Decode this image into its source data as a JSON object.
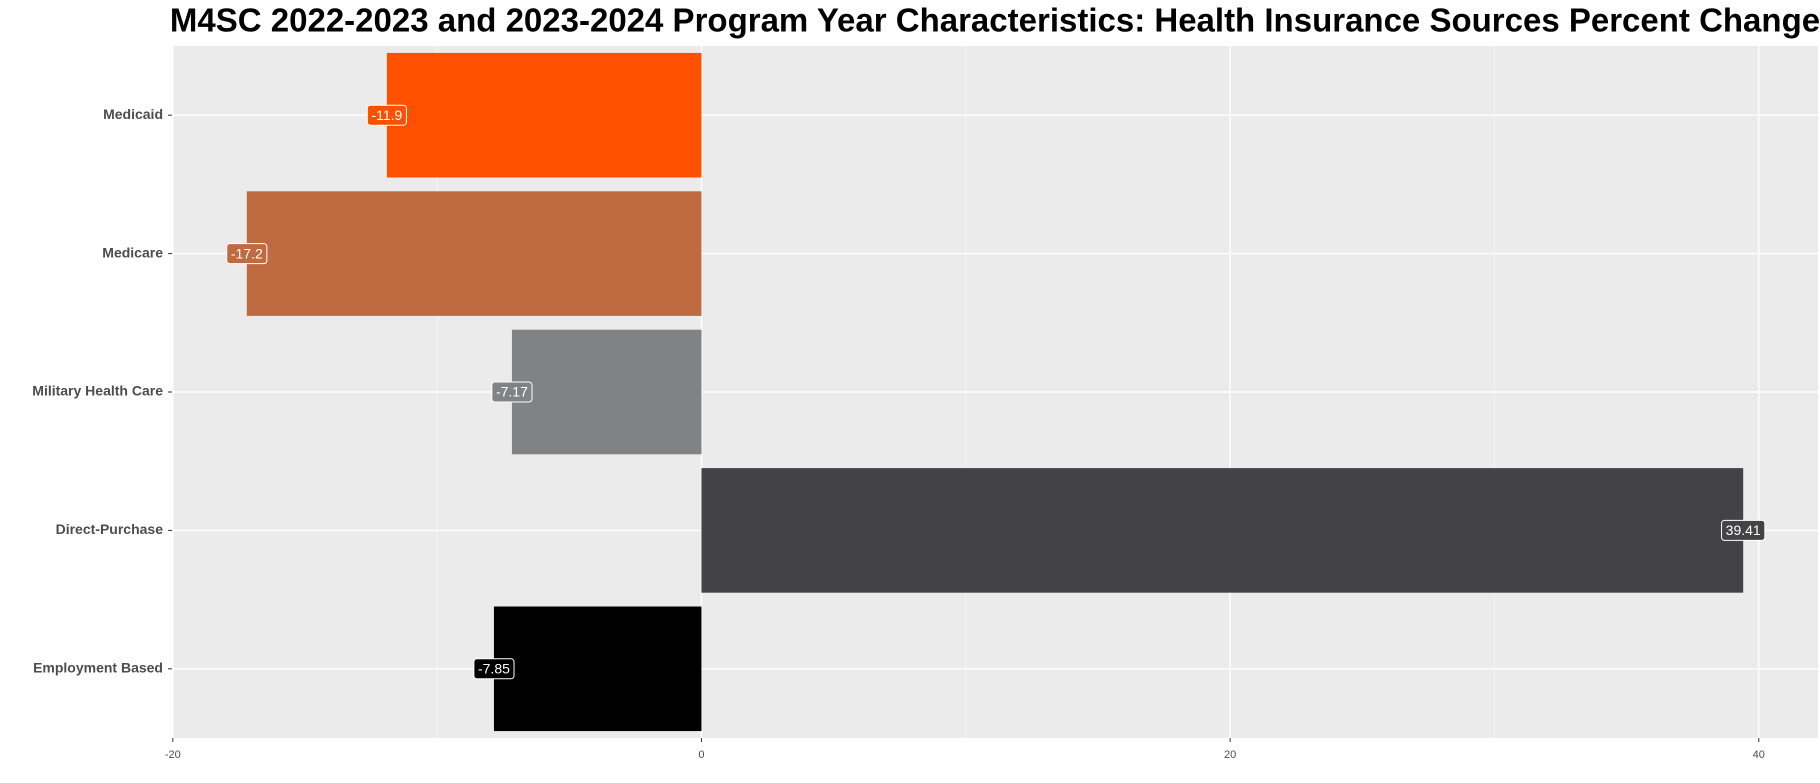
{
  "chart_data": {
    "type": "barh",
    "title": "M4SC 2022-2023 and 2023-2024 Program Year Characteristics: Health Insurance Sources Percent Change",
    "categories": [
      "Medicaid",
      "Medicare",
      "Military Health Care",
      "Direct-Purchase",
      "Employment Based"
    ],
    "values": [
      -11.9,
      -17.2,
      -7.17,
      39.41,
      -7.85
    ],
    "colors": [
      "#ff5000",
      "#bf6a40",
      "#818285",
      "#434345",
      "#000000"
    ],
    "xlim": [
      -20.03,
      42.24
    ],
    "xticks": [
      -20,
      0,
      20,
      40
    ],
    "xminor": [
      -10,
      10,
      30
    ],
    "grid": true
  }
}
